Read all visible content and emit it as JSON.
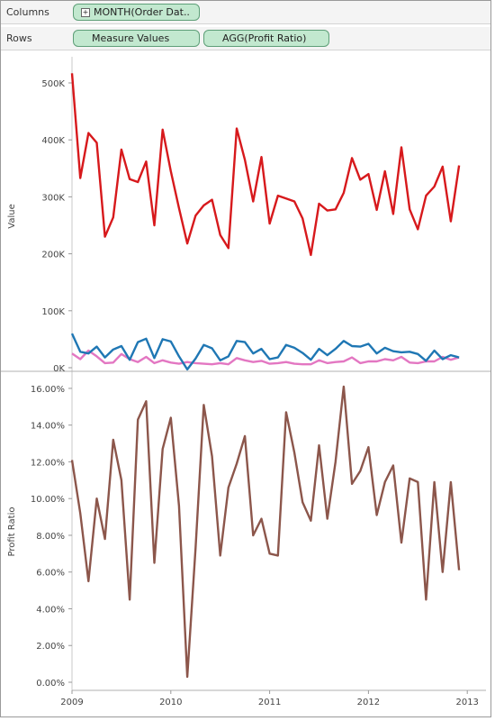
{
  "shelves": {
    "columns_label": "Columns",
    "rows_label": "Rows",
    "columns_pill": "MONTH(Order Dat..",
    "rows_pills": [
      "Measure Values",
      "AGG(Profit Ratio)"
    ]
  },
  "colors": {
    "sales": "#d7191c",
    "profit": "#1f77b4",
    "shipping": "#e377c2",
    "ratio": "#8c564b"
  },
  "chart_data": [
    {
      "type": "line",
      "ylabel": "Value",
      "ylim": [
        0,
        520000
      ],
      "yticks": [
        "0K",
        "100K",
        "200K",
        "300K",
        "400K",
        "500K"
      ],
      "grid": false,
      "x": [
        "2009-01",
        "2009-02",
        "2009-03",
        "2009-04",
        "2009-05",
        "2009-06",
        "2009-07",
        "2009-08",
        "2009-09",
        "2009-10",
        "2009-11",
        "2009-12",
        "2010-01",
        "2010-02",
        "2010-03",
        "2010-04",
        "2010-05",
        "2010-06",
        "2010-07",
        "2010-08",
        "2010-09",
        "2010-10",
        "2010-11",
        "2010-12",
        "2011-01",
        "2011-02",
        "2011-03",
        "2011-04",
        "2011-05",
        "2011-06",
        "2011-07",
        "2011-08",
        "2011-09",
        "2011-10",
        "2011-11",
        "2011-12",
        "2012-01",
        "2012-02",
        "2012-03",
        "2012-04",
        "2012-05",
        "2012-06",
        "2012-07",
        "2012-08",
        "2012-09",
        "2012-10",
        "2012-11",
        "2012-12"
      ],
      "series": [
        {
          "values": [
            517000,
            333000,
            412000,
            395000,
            230000,
            264000,
            383000,
            331000,
            326000,
            362000,
            250000,
            418000,
            345000,
            280000,
            218000,
            267000,
            285000,
            295000,
            233000,
            210000,
            420000,
            365000,
            292000,
            370000,
            253000,
            302000,
            297000,
            292000,
            262000,
            198000,
            288000,
            276000,
            278000,
            307000,
            368000,
            330000,
            340000,
            277000,
            345000,
            270000,
            387000,
            278000,
            243000,
            302000,
            318000,
            353000,
            257000,
            355000
          ]
        },
        {
          "values": [
            60000,
            28000,
            25000,
            37000,
            18000,
            32000,
            38000,
            14000,
            45000,
            51000,
            17000,
            50000,
            46000,
            20000,
            -3000,
            16000,
            40000,
            34000,
            13000,
            20000,
            47000,
            45000,
            25000,
            33000,
            15000,
            18000,
            40000,
            35000,
            26000,
            14000,
            33000,
            22000,
            33000,
            47000,
            38000,
            37000,
            42000,
            25000,
            35000,
            29000,
            27000,
            28000,
            24000,
            12000,
            30000,
            15000,
            22000,
            18000
          ]
        },
        {
          "values": [
            25000,
            15000,
            30000,
            20000,
            8000,
            9000,
            24000,
            15000,
            10000,
            19000,
            8000,
            13000,
            9000,
            7000,
            10000,
            8000,
            7000,
            6000,
            8000,
            6000,
            17000,
            13000,
            10000,
            12000,
            7000,
            8000,
            10000,
            7000,
            6000,
            6000,
            13000,
            8000,
            10000,
            11000,
            18000,
            8000,
            11000,
            11000,
            15000,
            13000,
            19000,
            9000,
            8000,
            11000,
            11000,
            19000,
            14000,
            18000
          ]
        }
      ]
    },
    {
      "type": "line",
      "ylabel": "Profit Ratio",
      "ylim": [
        0,
        16.5
      ],
      "yticks": [
        "0.00%",
        "2.00%",
        "4.00%",
        "6.00%",
        "8.00%",
        "10.00%",
        "12.00%",
        "14.00%",
        "16.00%"
      ],
      "grid": false,
      "x_tick_labels": [
        "2009",
        "2010",
        "2011",
        "2012",
        "2013"
      ],
      "x": [
        "2009-01",
        "2009-02",
        "2009-03",
        "2009-04",
        "2009-05",
        "2009-06",
        "2009-07",
        "2009-08",
        "2009-09",
        "2009-10",
        "2009-11",
        "2009-12",
        "2010-01",
        "2010-02",
        "2010-03",
        "2010-04",
        "2010-05",
        "2010-06",
        "2010-07",
        "2010-08",
        "2010-09",
        "2010-10",
        "2010-11",
        "2010-12",
        "2011-01",
        "2011-02",
        "2011-03",
        "2011-04",
        "2011-05",
        "2011-06",
        "2011-07",
        "2011-08",
        "2011-09",
        "2011-10",
        "2011-11",
        "2011-12",
        "2012-01",
        "2012-02",
        "2012-03",
        "2012-04",
        "2012-05",
        "2012-06",
        "2012-07",
        "2012-08",
        "2012-09",
        "2012-10",
        "2012-11",
        "2012-12"
      ],
      "series": [
        {
          "values": [
            12.1,
            9.2,
            5.5,
            10.0,
            7.8,
            13.2,
            11.0,
            4.5,
            14.3,
            15.3,
            6.5,
            12.7,
            14.4,
            9.6,
            0.3,
            7.3,
            15.1,
            12.3,
            6.9,
            10.6,
            11.9,
            13.4,
            8.0,
            8.9,
            7.0,
            6.9,
            14.7,
            12.5,
            9.8,
            8.8,
            12.9,
            8.9,
            12.0,
            16.1,
            10.8,
            11.5,
            12.8,
            9.1,
            10.9,
            11.8,
            7.6,
            11.1,
            10.9,
            4.5,
            10.9,
            6.0,
            10.9,
            6.1
          ]
        }
      ]
    }
  ]
}
